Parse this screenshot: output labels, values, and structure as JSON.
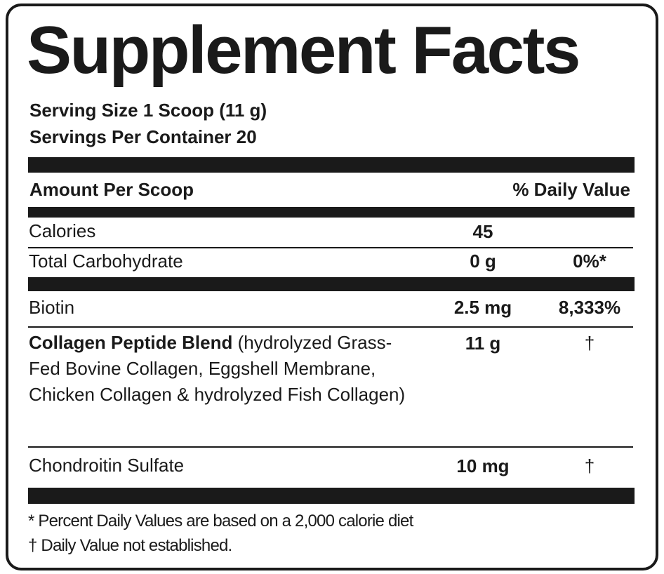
{
  "title": "Supplement Facts",
  "serving": {
    "size": "Serving Size 1 Scoop (11 g)",
    "per_container": "Servings Per Container 20"
  },
  "header": {
    "amount": "Amount Per Scoop",
    "daily_value": "% Daily Value"
  },
  "rows": [
    {
      "name": "Calories",
      "amount": "45"
    },
    {
      "name": "Total Carbohydrate",
      "amount": "0 g",
      "daily_value": "0%*"
    },
    {
      "name": "Biotin",
      "amount": "2.5 mg",
      "daily_value": "8,333%"
    },
    {
      "name": "Collagen Peptide Blend",
      "description": "(hydrolyzed Grass-Fed Bovine Collagen, Eggshell Membrane, Chicken Collagen & hydrolyzed Fish Collagen)",
      "amount": "11 g",
      "daily_value": "†"
    },
    {
      "name": "Chondroitin Sulfate",
      "amount": "10 mg",
      "daily_value": "†"
    }
  ],
  "footnotes": [
    "* Percent Daily Values are based on a 2,000 calorie diet",
    "† Daily Value not established."
  ]
}
